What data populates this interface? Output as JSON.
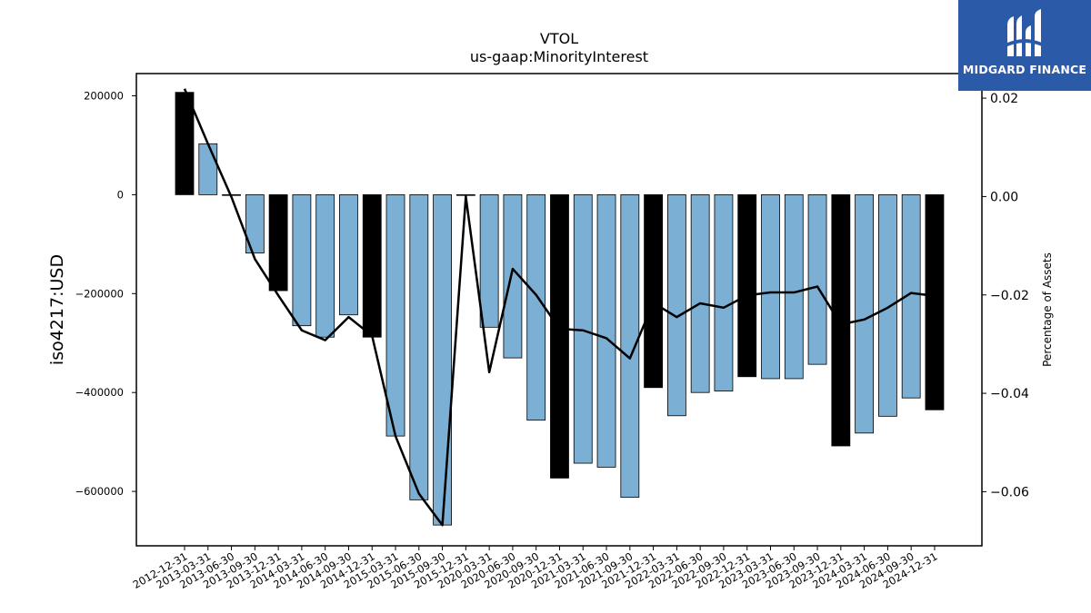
{
  "brand": {
    "name": "MIDGARD FINANCE",
    "bg_color": "#2a5aa8",
    "icon": "midgard-logo-icon"
  },
  "chart_data": {
    "type": "bar",
    "title": "VTOL",
    "subtitle": "us-gaap:MinorityInterest",
    "ylabel": "iso4217:USD",
    "y2label": "Percentage of Assets",
    "ylim": [
      -710000,
      245000
    ],
    "y2lim": [
      -0.071,
      0.025
    ],
    "yticks": [
      200000,
      0,
      -200000,
      -400000,
      -600000
    ],
    "ytick_labels": [
      "200000",
      "0",
      "−200000",
      "−400000",
      "−600000"
    ],
    "y2ticks": [
      0.02,
      0.0,
      -0.02,
      -0.04,
      -0.06
    ],
    "y2tick_labels": [
      "0.02",
      "0.00",
      "−0.02",
      "−0.04",
      "−0.06"
    ],
    "grid": false,
    "colors": {
      "quarter_bar": "#7bafd4",
      "year_end_bar": "#000000",
      "line": "#000000"
    },
    "categories": [
      "2012-12-31",
      "2013-03-31",
      "2013-06-30",
      "2013-09-30",
      "2013-12-31",
      "2014-03-31",
      "2014-06-30",
      "2014-09-30",
      "2014-12-31",
      "2015-03-31",
      "2015-06-30",
      "2015-09-30",
      "2015-12-31",
      "2020-03-31",
      "2020-06-30",
      "2020-09-30",
      "2020-12-31",
      "2021-03-31",
      "2021-06-30",
      "2021-09-30",
      "2021-12-31",
      "2022-03-31",
      "2022-06-30",
      "2022-09-30",
      "2022-12-31",
      "2023-03-31",
      "2023-06-30",
      "2023-09-30",
      "2023-12-31",
      "2024-03-31",
      "2024-06-30",
      "2024-09-30",
      "2024-12-31"
    ],
    "series": [
      {
        "kind": "bar",
        "values": [
          207000,
          103000,
          0,
          -118000,
          -194000,
          -265000,
          -288000,
          -243000,
          -288000,
          -488000,
          -617000,
          -668000,
          0,
          -268000,
          -330000,
          -456000,
          -573000,
          -543000,
          -551000,
          -612000,
          -390000,
          -447000,
          -400000,
          -397000,
          -368000,
          -372000,
          -372000,
          -343000,
          -508000,
          -482000,
          -448000,
          -411000,
          -435000
        ],
        "year_end": [
          true,
          false,
          false,
          false,
          true,
          false,
          false,
          false,
          true,
          false,
          false,
          false,
          true,
          false,
          false,
          false,
          true,
          false,
          false,
          false,
          true,
          false,
          false,
          false,
          true,
          false,
          false,
          false,
          true,
          false,
          false,
          false,
          true
        ]
      },
      {
        "kind": "line",
        "axis": "right",
        "values": [
          0.0219,
          0.0107,
          -0.0001,
          -0.0127,
          -0.0201,
          -0.0272,
          -0.0292,
          -0.0245,
          -0.0283,
          -0.0487,
          -0.0604,
          -0.0668,
          0.0,
          -0.0357,
          -0.0147,
          -0.02,
          -0.0269,
          -0.0272,
          -0.0288,
          -0.0329,
          -0.0216,
          -0.0245,
          -0.0217,
          -0.0226,
          -0.0201,
          -0.0195,
          -0.0195,
          -0.0183,
          -0.026,
          -0.025,
          -0.0226,
          -0.0196,
          -0.0202
        ]
      }
    ]
  }
}
